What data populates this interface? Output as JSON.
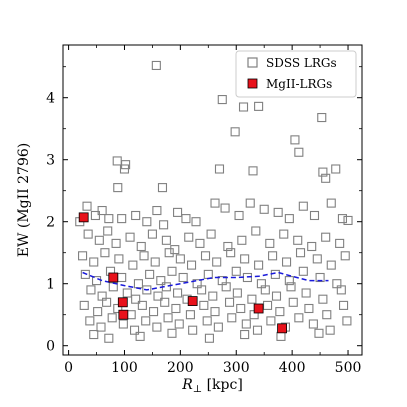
{
  "chart_data": {
    "type": "scatter",
    "xlabel": "R⊥ [kpc]",
    "ylabel": "EW (MgII 2796)",
    "xlim": [
      -10,
      525
    ],
    "ylim": [
      -0.15,
      4.85
    ],
    "xticks": [
      0,
      100,
      200,
      300,
      400,
      500
    ],
    "yticks": [
      0,
      1,
      2,
      3,
      4
    ],
    "legend": {
      "placement": "top-right",
      "entries": [
        "SDSS LRGs",
        "MgII-LRGs"
      ]
    },
    "colors": {
      "sdss_marker_edge": "#808080",
      "mgii_marker_fill": "#e8121b",
      "trend_line": "#1a1adb"
    },
    "series": [
      {
        "name": "SDSS LRGs",
        "marker": "open-square",
        "points": [
          [
            157,
            4.52
          ],
          [
            308,
            4.2
          ],
          [
            337,
            4.45
          ],
          [
            313,
            3.85
          ],
          [
            340,
            3.86
          ],
          [
            298,
            3.45
          ],
          [
            275,
            3.97
          ],
          [
            405,
            3.32
          ],
          [
            453,
            3.68
          ],
          [
            412,
            3.12
          ],
          [
            87,
            2.98
          ],
          [
            102,
            2.92
          ],
          [
            100,
            2.85
          ],
          [
            168,
            2.55
          ],
          [
            88,
            2.55
          ],
          [
            270,
            2.85
          ],
          [
            330,
            2.82
          ],
          [
            455,
            2.8
          ],
          [
            460,
            2.7
          ],
          [
            478,
            2.85
          ],
          [
            20,
            2.0
          ],
          [
            33,
            2.25
          ],
          [
            48,
            2.1
          ],
          [
            60,
            2.18
          ],
          [
            72,
            2.05
          ],
          [
            95,
            2.05
          ],
          [
            120,
            2.1
          ],
          [
            140,
            2.0
          ],
          [
            158,
            2.18
          ],
          [
            170,
            1.95
          ],
          [
            195,
            2.15
          ],
          [
            210,
            2.05
          ],
          [
            228,
            2.0
          ],
          [
            262,
            2.3
          ],
          [
            280,
            2.22
          ],
          [
            305,
            2.1
          ],
          [
            325,
            2.3
          ],
          [
            350,
            2.2
          ],
          [
            375,
            2.15
          ],
          [
            395,
            2.05
          ],
          [
            420,
            2.25
          ],
          [
            440,
            2.1
          ],
          [
            470,
            2.3
          ],
          [
            490,
            2.05
          ],
          [
            500,
            2.02
          ],
          [
            35,
            1.8
          ],
          [
            55,
            1.7
          ],
          [
            70,
            1.85
          ],
          [
            85,
            1.65
          ],
          [
            110,
            1.75
          ],
          [
            130,
            1.6
          ],
          [
            150,
            1.8
          ],
          [
            175,
            1.7
          ],
          [
            190,
            1.55
          ],
          [
            215,
            1.75
          ],
          [
            235,
            1.65
          ],
          [
            255,
            1.8
          ],
          [
            285,
            1.6
          ],
          [
            310,
            1.7
          ],
          [
            335,
            1.85
          ],
          [
            360,
            1.65
          ],
          [
            385,
            1.8
          ],
          [
            410,
            1.7
          ],
          [
            435,
            1.6
          ],
          [
            460,
            1.75
          ],
          [
            485,
            1.65
          ],
          [
            25,
            1.45
          ],
          [
            45,
            1.35
          ],
          [
            65,
            1.5
          ],
          [
            90,
            1.4
          ],
          [
            115,
            1.3
          ],
          [
            135,
            1.45
          ],
          [
            155,
            1.35
          ],
          [
            180,
            1.5
          ],
          [
            200,
            1.4
          ],
          [
            220,
            1.3
          ],
          [
            245,
            1.45
          ],
          [
            265,
            1.35
          ],
          [
            290,
            1.5
          ],
          [
            315,
            1.4
          ],
          [
            340,
            1.3
          ],
          [
            365,
            1.45
          ],
          [
            390,
            1.35
          ],
          [
            415,
            1.5
          ],
          [
            445,
            1.4
          ],
          [
            470,
            1.3
          ],
          [
            495,
            1.45
          ],
          [
            30,
            1.15
          ],
          [
            50,
            1.05
          ],
          [
            75,
            1.2
          ],
          [
            95,
            1.1
          ],
          [
            125,
            1.0
          ],
          [
            145,
            1.15
          ],
          [
            165,
            1.05
          ],
          [
            185,
            1.2
          ],
          [
            205,
            1.1
          ],
          [
            230,
            1.0
          ],
          [
            250,
            1.15
          ],
          [
            275,
            1.05
          ],
          [
            300,
            1.2
          ],
          [
            320,
            1.1
          ],
          [
            345,
            1.0
          ],
          [
            370,
            1.15
          ],
          [
            395,
            1.05
          ],
          [
            420,
            1.2
          ],
          [
            450,
            1.1
          ],
          [
            480,
            1.0
          ],
          [
            40,
            0.9
          ],
          [
            60,
            0.8
          ],
          [
            80,
            0.95
          ],
          [
            105,
            0.85
          ],
          [
            120,
            0.75
          ],
          [
            140,
            0.9
          ],
          [
            160,
            0.8
          ],
          [
            175,
            0.95
          ],
          [
            195,
            0.85
          ],
          [
            212,
            0.75
          ],
          [
            238,
            0.9
          ],
          [
            258,
            0.8
          ],
          [
            282,
            0.95
          ],
          [
            302,
            0.85
          ],
          [
            328,
            0.75
          ],
          [
            352,
            0.9
          ],
          [
            372,
            0.8
          ],
          [
            398,
            0.95
          ],
          [
            425,
            0.85
          ],
          [
            455,
            0.75
          ],
          [
            488,
            0.9
          ],
          [
            28,
            0.65
          ],
          [
            52,
            0.55
          ],
          [
            68,
            0.7
          ],
          [
            88,
            0.6
          ],
          [
            112,
            0.5
          ],
          [
            132,
            0.65
          ],
          [
            152,
            0.55
          ],
          [
            172,
            0.7
          ],
          [
            192,
            0.6
          ],
          [
            218,
            0.5
          ],
          [
            242,
            0.65
          ],
          [
            262,
            0.55
          ],
          [
            288,
            0.7
          ],
          [
            308,
            0.6
          ],
          [
            332,
            0.5
          ],
          [
            356,
            0.65
          ],
          [
            378,
            0.55
          ],
          [
            402,
            0.7
          ],
          [
            430,
            0.6
          ],
          [
            462,
            0.5
          ],
          [
            492,
            0.65
          ],
          [
            38,
            0.4
          ],
          [
            58,
            0.3
          ],
          [
            78,
            0.45
          ],
          [
            98,
            0.35
          ],
          [
            118,
            0.25
          ],
          [
            138,
            0.4
          ],
          [
            158,
            0.3
          ],
          [
            178,
            0.45
          ],
          [
            198,
            0.35
          ],
          [
            222,
            0.25
          ],
          [
            248,
            0.4
          ],
          [
            268,
            0.3
          ],
          [
            292,
            0.45
          ],
          [
            318,
            0.35
          ],
          [
            338,
            0.25
          ],
          [
            362,
            0.4
          ],
          [
            388,
            0.3
          ],
          [
            412,
            0.45
          ],
          [
            438,
            0.35
          ],
          [
            468,
            0.25
          ],
          [
            498,
            0.4
          ],
          [
            45,
            0.18
          ],
          [
            72,
            0.12
          ],
          [
            128,
            0.15
          ],
          [
            185,
            0.2
          ],
          [
            252,
            0.12
          ],
          [
            315,
            0.18
          ],
          [
            380,
            0.15
          ],
          [
            448,
            0.2
          ]
        ]
      },
      {
        "name": "MgII-LRGs",
        "marker": "filled-square",
        "points": [
          [
            27,
            2.07
          ],
          [
            80,
            1.1
          ],
          [
            97,
            0.7
          ],
          [
            98,
            0.5
          ],
          [
            222,
            0.72
          ],
          [
            340,
            0.6
          ],
          [
            382,
            0.28
          ]
        ]
      },
      {
        "name": "",
        "marker": "dashed-line",
        "points": [
          [
            25,
            1.18
          ],
          [
            60,
            1.05
          ],
          [
            100,
            0.97
          ],
          [
            140,
            0.9
          ],
          [
            170,
            0.95
          ],
          [
            200,
            1.0
          ],
          [
            230,
            1.05
          ],
          [
            260,
            1.1
          ],
          [
            300,
            1.1
          ],
          [
            340,
            1.12
          ],
          [
            375,
            1.18
          ],
          [
            400,
            1.12
          ],
          [
            430,
            1.05
          ],
          [
            465,
            1.05
          ]
        ]
      }
    ]
  }
}
